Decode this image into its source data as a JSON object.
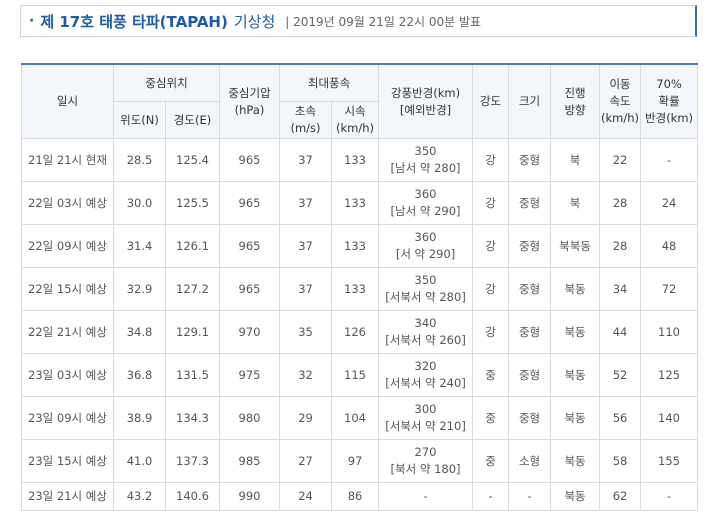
{
  "header": {
    "bullet": "·",
    "title": "제 17호 태풍 타파(TAPAH)",
    "agency": "기상청",
    "issued": "| 2019년 09월 21일 22시 00분 발표"
  },
  "table": {
    "columns": {
      "datetime": "일시",
      "center_position": "중심위치",
      "latitude": "위도(N)",
      "longitude": "경도(E)",
      "pressure": [
        "중심기압",
        "(hPa)"
      ],
      "max_wind": "최대풍속",
      "wind_ms": [
        "초속",
        "(m/s)"
      ],
      "wind_kmh": [
        "시속",
        "(km/h)"
      ],
      "gale_radius": [
        "강풍반경(km)",
        "[예외반경]"
      ],
      "intensity": "강도",
      "size": "크기",
      "direction": [
        "진행",
        "방향"
      ],
      "speed": [
        "이동",
        "속도",
        "(km/h)"
      ],
      "prob_radius": [
        "70%",
        "확률",
        "반경(km)"
      ]
    },
    "rows": [
      [
        "21일 21시 현재",
        "28.5",
        "125.4",
        "965",
        "37",
        "133",
        [
          "350",
          "[남서 약 280]"
        ],
        "강",
        "중형",
        "북",
        "22",
        "-"
      ],
      [
        "22일 03시 예상",
        "30.0",
        "125.5",
        "965",
        "37",
        "133",
        [
          "360",
          "[남서 약 290]"
        ],
        "강",
        "중형",
        "북",
        "28",
        "24"
      ],
      [
        "22일 09시 예상",
        "31.4",
        "126.1",
        "965",
        "37",
        "133",
        [
          "360",
          "[서 약 290]"
        ],
        "강",
        "중형",
        "북북동",
        "28",
        "48"
      ],
      [
        "22일 15시 예상",
        "32.9",
        "127.2",
        "965",
        "37",
        "133",
        [
          "350",
          "[서북서 약 280]"
        ],
        "강",
        "중형",
        "북동",
        "34",
        "72"
      ],
      [
        "22일 21시 예상",
        "34.8",
        "129.1",
        "970",
        "35",
        "126",
        [
          "340",
          "[서북서 약 260]"
        ],
        "강",
        "중형",
        "북동",
        "44",
        "110"
      ],
      [
        "23일 03시 예상",
        "36.8",
        "131.5",
        "975",
        "32",
        "115",
        [
          "320",
          "[서북서 약 240]"
        ],
        "중",
        "중형",
        "북동",
        "52",
        "125"
      ],
      [
        "23일 09시 예상",
        "38.9",
        "134.3",
        "980",
        "29",
        "104",
        [
          "300",
          "[서북서 약 210]"
        ],
        "중",
        "중형",
        "북동",
        "56",
        "140"
      ],
      [
        "23일 15시 예상",
        "41.0",
        "137.3",
        "985",
        "27",
        "97",
        [
          "270",
          "[북서 약 180]"
        ],
        "중",
        "소형",
        "북동",
        "58",
        "155"
      ],
      [
        "23일 21시 예상",
        "43.2",
        "140.6",
        "990",
        "24",
        "86",
        [
          "-"
        ],
        "-",
        "-",
        "북동",
        "62",
        "-"
      ]
    ]
  }
}
